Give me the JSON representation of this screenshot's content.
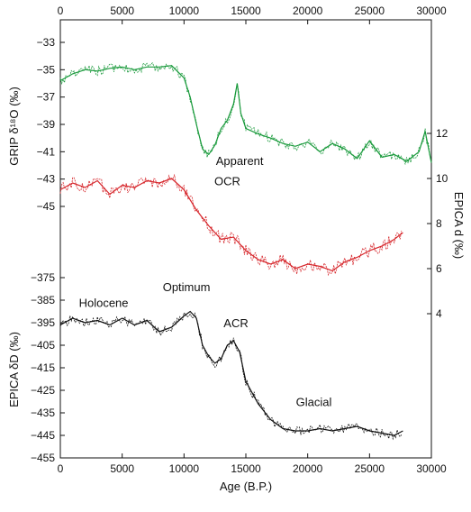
{
  "chart_data": {
    "type": "line",
    "xlabel": "Age (B.P.)",
    "xlim": [
      0,
      30000
    ],
    "x_ticks": [
      "0",
      "5000",
      "10000",
      "15000",
      "20000",
      "25000",
      "30000"
    ],
    "top_x_ticks": [
      "0",
      "5000",
      "10000",
      "15000",
      "20000",
      "25000",
      "30000"
    ],
    "colors": {
      "grip": "#1a9a3c",
      "epica_d": "#d6262b",
      "epica_dD": "#111111"
    },
    "panels": [
      {
        "id": "grip",
        "ylabel": "GRIP δ¹⁸O (‰)",
        "axis": "left-upper",
        "ylim": [
          -46,
          -33
        ],
        "y_ticks": [
          "-33",
          "-35",
          "-37",
          "-39",
          "-41",
          "-43",
          "-45"
        ],
        "series": [
          {
            "x": [
              0,
              1000,
              2000,
              3000,
              4000,
              5000,
              6000,
              7000,
              8000,
              9000,
              10000,
              10500,
              11000,
              11500,
              12000,
              12500,
              13000,
              13500,
              14000,
              14300,
              14600,
              15000,
              16000,
              17000,
              18000,
              19000,
              20000,
              21000,
              22000,
              23000,
              24000,
              25000,
              26000,
              27000,
              28000,
              29000,
              29500,
              30000
            ],
            "values": [
              -35.8,
              -35.3,
              -35.0,
              -35.1,
              -34.9,
              -34.8,
              -35.0,
              -34.8,
              -34.8,
              -34.7,
              -35.6,
              -37.0,
              -39.0,
              -40.8,
              -41.2,
              -40.5,
              -39.3,
              -38.7,
              -37.5,
              -36.0,
              -38.2,
              -39.3,
              -39.7,
              -40.0,
              -40.4,
              -40.6,
              -40.3,
              -41.0,
              -40.4,
              -40.8,
              -41.5,
              -40.2,
              -41.4,
              -41.2,
              -41.7,
              -41.0,
              -39.5,
              -41.8
            ]
          }
        ]
      },
      {
        "id": "epica_d",
        "ylabel": "EPICA d (‰)",
        "axis": "right-middle",
        "ylim": [
          4,
          12
        ],
        "y_ticks": [
          "4",
          "6",
          "8",
          "10",
          "12"
        ],
        "series": [
          {
            "x": [
              0,
              1000,
              2000,
              3000,
              4000,
              5000,
              6000,
              7000,
              8000,
              9000,
              10000,
              11000,
              12000,
              13000,
              14000,
              15000,
              16000,
              17000,
              18000,
              19000,
              20000,
              21000,
              22000,
              23000,
              24000,
              25000,
              26000,
              27000,
              27700
            ],
            "values": [
              9.5,
              9.8,
              9.6,
              9.9,
              9.3,
              9.7,
              9.6,
              9.9,
              9.8,
              10.0,
              9.5,
              8.6,
              7.9,
              7.3,
              7.4,
              6.8,
              6.4,
              6.2,
              6.4,
              6.0,
              6.2,
              6.1,
              5.9,
              6.3,
              6.5,
              6.8,
              7.0,
              7.3,
              7.6
            ]
          }
        ]
      },
      {
        "id": "epica_dD",
        "ylabel": "EPICA δD (‰)",
        "axis": "left-lower",
        "ylim": [
          -455,
          -375
        ],
        "y_ticks": [
          "-375",
          "-385",
          "-395",
          "-405",
          "-415",
          "-425",
          "-435",
          "-445",
          "-455"
        ],
        "series": [
          {
            "x": [
              0,
              1000,
              2000,
              3000,
              4000,
              5000,
              6000,
              7000,
              8000,
              9000,
              10000,
              10500,
              11000,
              11500,
              12000,
              12500,
              13000,
              13500,
              14000,
              14500,
              15000,
              16000,
              17000,
              18000,
              19000,
              20000,
              21000,
              22000,
              23000,
              24000,
              25000,
              26000,
              27000,
              27700
            ],
            "values": [
              -396,
              -393,
              -395,
              -394,
              -396,
              -393,
              -396,
              -394,
              -399,
              -397,
              -392,
              -390,
              -393,
              -405,
              -410,
              -413,
              -411,
              -405,
              -403,
              -408,
              -421,
              -431,
              -438,
              -442,
              -443,
              -443,
              -442,
              -443,
              -442,
              -441,
              -443,
              -444,
              -445,
              -443
            ]
          }
        ]
      }
    ],
    "annotations": [
      {
        "text": "Holocene",
        "x": 3500,
        "axis": "epica_dD",
        "y": -388
      },
      {
        "text": "Optimum",
        "x": 10200,
        "axis": "epica_dD",
        "y": -381
      },
      {
        "text": "Apparent",
        "x": 14500,
        "axis": "epica_d",
        "y": 10.6
      },
      {
        "text": "OCR",
        "x": 13500,
        "axis": "epica_d",
        "y": 9.7
      },
      {
        "text": "ACR",
        "x": 14200,
        "axis": "epica_dD",
        "y": -397
      },
      {
        "text": "Glacial",
        "x": 20500,
        "axis": "epica_dD",
        "y": -432
      }
    ]
  }
}
